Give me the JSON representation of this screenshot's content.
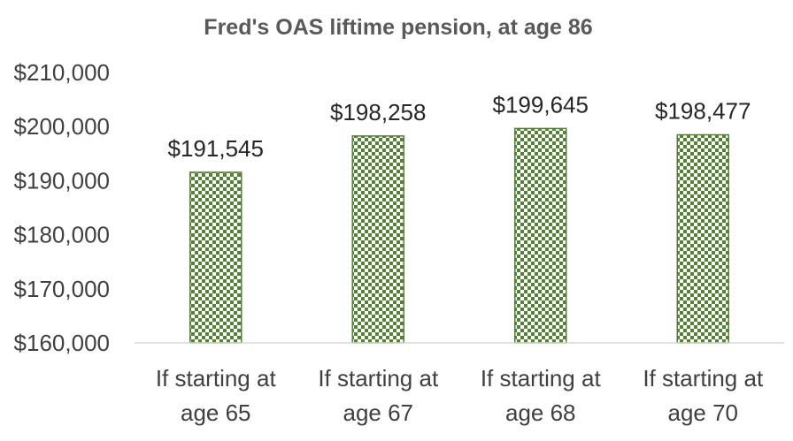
{
  "chart_data": {
    "type": "bar",
    "title": "Fred's OAS liftime pension, at age 86",
    "xlabel": "",
    "ylabel": "",
    "categories": [
      [
        "If starting at",
        "age 65"
      ],
      [
        "If starting at",
        "age 67"
      ],
      [
        "If starting at",
        "age 68"
      ],
      [
        "If starting at",
        "age 70"
      ]
    ],
    "values": [
      191545,
      198258,
      199645,
      198477
    ],
    "value_labels": [
      "$191,545",
      "$198,258",
      "$199,645",
      "$198,477"
    ],
    "ylim": [
      160000,
      210000
    ],
    "y_ticks": [
      160000,
      170000,
      180000,
      190000,
      200000,
      210000
    ],
    "y_tick_labels": [
      "$160,000",
      "$170,000",
      "$180,000",
      "$190,000",
      "$200,000",
      "$210,000"
    ],
    "grid": false,
    "legend": "none",
    "bar_fill": "checkerboard",
    "colors": {
      "bar_pattern": "#548235",
      "bar_background": "#ffffff",
      "axis": "#d9d9d9",
      "title": "#595959",
      "text": "#404040"
    }
  }
}
